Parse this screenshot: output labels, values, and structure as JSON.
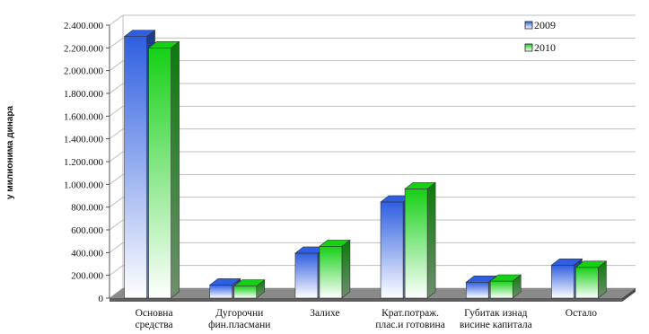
{
  "chart_data": {
    "type": "bar",
    "ylabel": "у милионима динара",
    "ylim": [
      0,
      2400000
    ],
    "ytick_labels": [
      "0",
      "200.000",
      "400.000",
      "600.000",
      "800.000",
      "1.000.000",
      "1.200.000",
      "1.400.000",
      "1.600.000",
      "1.800.000",
      "2.000.000",
      "2.200.000",
      "2.400.000"
    ],
    "ytick_values": [
      0,
      200000,
      400000,
      600000,
      800000,
      1000000,
      1200000,
      1400000,
      1600000,
      1800000,
      2000000,
      2200000,
      2400000
    ],
    "categories": [
      [
        "Основна",
        "средства"
      ],
      [
        "Дугорочни",
        "фин.пласмани"
      ],
      [
        "Залихе"
      ],
      [
        "Крат.потраж.",
        "плас.и готовина"
      ],
      [
        "Губитак изнад",
        "висине капитала"
      ],
      [
        "Остало"
      ]
    ],
    "series": [
      {
        "name": "2009",
        "values": [
          2300000,
          115000,
          395000,
          845000,
          140000,
          290000
        ]
      },
      {
        "name": "2010",
        "values": [
          2200000,
          105000,
          455000,
          960000,
          150000,
          270000
        ]
      }
    ],
    "legend_position": "top-right",
    "grid": true,
    "colors": {
      "s2009_top": "#2f5fe0",
      "s2009_bottom": "#ffffff",
      "s2009_side": "#1c3a8c",
      "s2010_top": "#16d016",
      "s2010_bottom": "#ffffff",
      "s2010_side": "#0b7a0b",
      "floor": "#8a8a8a",
      "grid": "#bfbfbf"
    }
  }
}
